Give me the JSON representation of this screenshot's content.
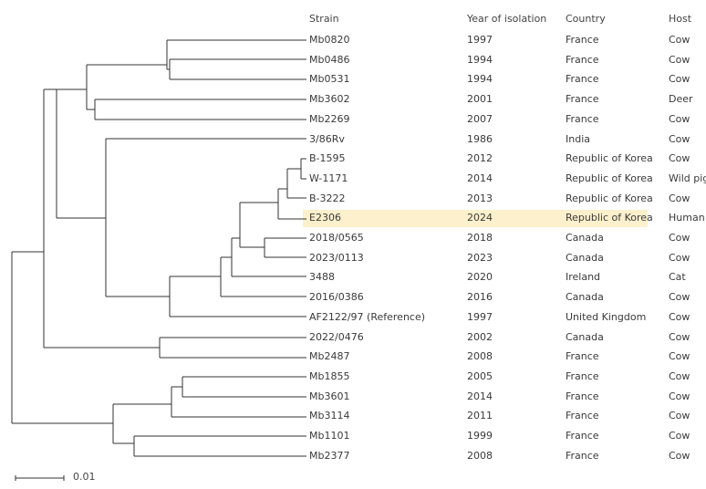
{
  "headers": {
    "strain": "Strain",
    "year": "Year of isolation",
    "country": "Country",
    "host": "Host"
  },
  "rows": [
    {
      "strain": "Mb0820",
      "year": "1997",
      "country": "France",
      "host": "Cow"
    },
    {
      "strain": "Mb0486",
      "year": "1994",
      "country": "France",
      "host": "Cow"
    },
    {
      "strain": "Mb0531",
      "year": "1994",
      "country": "France",
      "host": "Cow"
    },
    {
      "strain": "Mb3602",
      "year": "2001",
      "country": "France",
      "host": "Deer"
    },
    {
      "strain": "Mb2269",
      "year": "2007",
      "country": "France",
      "host": "Cow"
    },
    {
      "strain": "3/86Rv",
      "year": "1986",
      "country": "India",
      "host": "Cow"
    },
    {
      "strain": "B-1595",
      "year": "2012",
      "country": "Republic of Korea",
      "host": "Cow"
    },
    {
      "strain": "W-1171",
      "year": "2014",
      "country": "Republic of Korea",
      "host": "Wild pig"
    },
    {
      "strain": "B-3222",
      "year": "2013",
      "country": "Republic of Korea",
      "host": "Cow"
    },
    {
      "strain": "E2306",
      "year": "2024",
      "country": "Republic of Korea",
      "host": "Human",
      "highlight": true
    },
    {
      "strain": "2018/0565",
      "year": "2018",
      "country": "Canada",
      "host": "Cow"
    },
    {
      "strain": "2023/0113",
      "year": "2023",
      "country": "Canada",
      "host": "Cow"
    },
    {
      "strain": "3488",
      "year": "2020",
      "country": "Ireland",
      "host": "Cat"
    },
    {
      "strain": "2016/0386",
      "year": "2016",
      "country": "Canada",
      "host": "Cow"
    },
    {
      "strain": "AF2122/97 (Reference)",
      "year": "1997",
      "country": "United Kingdom",
      "host": "Cow"
    },
    {
      "strain": "2022/0476",
      "year": "2002",
      "country": "Canada",
      "host": "Cow"
    },
    {
      "strain": "Mb2487",
      "year": "2008",
      "country": "France",
      "host": "Cow"
    },
    {
      "strain": "Mb1855",
      "year": "2005",
      "country": "France",
      "host": "Cow"
    },
    {
      "strain": "Mb3601",
      "year": "2014",
      "country": "France",
      "host": "Cow"
    },
    {
      "strain": "Mb3114",
      "year": "2011",
      "country": "France",
      "host": "Cow"
    },
    {
      "strain": "Mb1101",
      "year": "1999",
      "country": "France",
      "host": "Cow"
    },
    {
      "strain": "Mb2377",
      "year": "2008",
      "country": "France",
      "host": "Cow"
    }
  ],
  "scale_bar": {
    "label": "0.01",
    "value": 0.01
  }
}
